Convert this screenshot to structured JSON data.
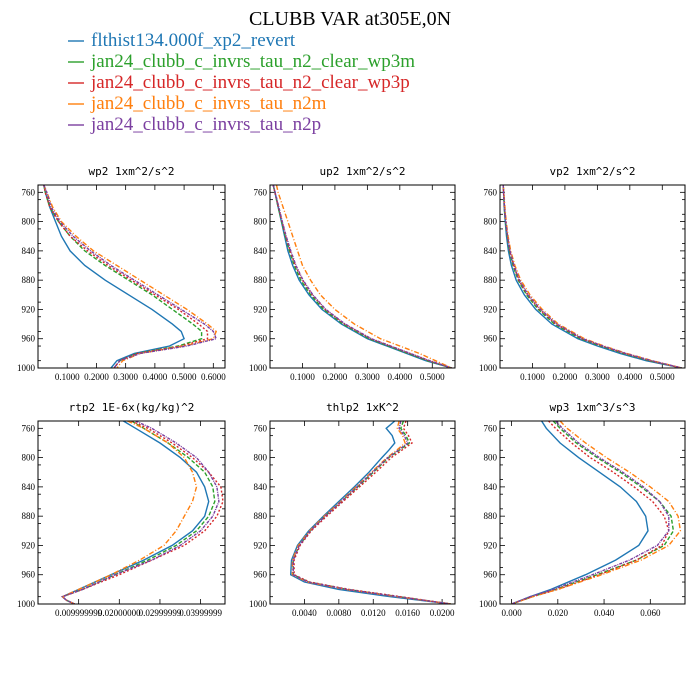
{
  "figure": {
    "title": "CLUBB VAR at305E,0N"
  },
  "legend": [
    {
      "label": "flthist134.000f_xp2_revert",
      "color": "#1f77b4"
    },
    {
      "label": "jan24_clubb_c_invrs_tau_n2_clear_wp3m",
      "color": "#2ca02c"
    },
    {
      "label": "jan24_clubb_c_invrs_tau_n2_clear_wp3p",
      "color": "#d62728"
    },
    {
      "label": "jan24_clubb_c_invrs_tau_n2m",
      "color": "#ff7f0e"
    },
    {
      "label": "jan24_clubb_c_invrs_tau_n2p",
      "color": "#7b3fa0"
    }
  ],
  "chart_data": [
    {
      "type": "line",
      "title": "wp2   1xm^2/s^2",
      "xlim": [
        0.0,
        0.64
      ],
      "ylim": [
        1000,
        750
      ],
      "xticks": [
        0.1,
        0.2,
        0.3,
        0.4,
        0.5,
        0.6
      ],
      "xtick_labels": [
        "0.1000",
        "0.2000",
        "0.3000",
        "0.4000",
        "0.5000",
        "0.6000"
      ],
      "yticks": [
        760,
        800,
        840,
        880,
        920,
        960,
        1000
      ],
      "y": [
        750,
        760,
        780,
        800,
        820,
        840,
        860,
        880,
        900,
        920,
        940,
        950,
        960,
        970,
        980,
        990,
        1000
      ],
      "series": [
        {
          "values": [
            0.02,
            0.025,
            0.04,
            0.06,
            0.08,
            0.11,
            0.16,
            0.23,
            0.31,
            0.39,
            0.46,
            0.49,
            0.5,
            0.45,
            0.33,
            0.27,
            0.25
          ]
        },
        {
          "values": [
            0.02,
            0.025,
            0.04,
            0.07,
            0.11,
            0.16,
            0.23,
            0.31,
            0.39,
            0.46,
            0.53,
            0.56,
            0.56,
            0.48,
            0.34,
            0.28,
            0.26
          ]
        },
        {
          "values": [
            0.02,
            0.025,
            0.04,
            0.07,
            0.11,
            0.17,
            0.24,
            0.32,
            0.4,
            0.48,
            0.55,
            0.58,
            0.58,
            0.49,
            0.34,
            0.28,
            0.26
          ]
        },
        {
          "values": [
            0.02,
            0.03,
            0.05,
            0.08,
            0.13,
            0.19,
            0.27,
            0.35,
            0.43,
            0.51,
            0.58,
            0.61,
            0.6,
            0.5,
            0.35,
            0.29,
            0.27
          ]
        },
        {
          "values": [
            0.02,
            0.03,
            0.045,
            0.075,
            0.12,
            0.18,
            0.25,
            0.33,
            0.41,
            0.49,
            0.57,
            0.6,
            0.61,
            0.51,
            0.35,
            0.28,
            0.26
          ]
        }
      ]
    },
    {
      "type": "line",
      "title": "up2   1xm^2/s^2",
      "xlim": [
        0.0,
        0.57
      ],
      "ylim": [
        1000,
        750
      ],
      "xticks": [
        0.1,
        0.2,
        0.3,
        0.4,
        0.5
      ],
      "xtick_labels": [
        "0.1000",
        "0.2000",
        "0.3000",
        "0.4000",
        "0.5000"
      ],
      "yticks": [
        760,
        800,
        840,
        880,
        920,
        960,
        1000
      ],
      "y": [
        750,
        760,
        780,
        800,
        820,
        840,
        860,
        880,
        900,
        920,
        940,
        960,
        970,
        980,
        990,
        1000
      ],
      "series": [
        {
          "values": [
            0.01,
            0.015,
            0.025,
            0.035,
            0.045,
            0.055,
            0.07,
            0.09,
            0.12,
            0.16,
            0.22,
            0.3,
            0.36,
            0.42,
            0.48,
            0.56
          ]
        },
        {
          "values": [
            0.01,
            0.015,
            0.025,
            0.036,
            0.047,
            0.06,
            0.075,
            0.095,
            0.125,
            0.165,
            0.225,
            0.305,
            0.365,
            0.425,
            0.485,
            0.56
          ]
        },
        {
          "values": [
            0.01,
            0.015,
            0.026,
            0.037,
            0.048,
            0.062,
            0.078,
            0.1,
            0.13,
            0.17,
            0.23,
            0.31,
            0.37,
            0.43,
            0.49,
            0.56
          ]
        },
        {
          "values": [
            0.02,
            0.025,
            0.04,
            0.055,
            0.07,
            0.085,
            0.1,
            0.125,
            0.155,
            0.2,
            0.26,
            0.34,
            0.4,
            0.46,
            0.51,
            0.56
          ]
        },
        {
          "values": [
            0.01,
            0.016,
            0.027,
            0.038,
            0.05,
            0.064,
            0.08,
            0.102,
            0.132,
            0.172,
            0.232,
            0.312,
            0.372,
            0.432,
            0.492,
            0.56
          ]
        }
      ]
    },
    {
      "type": "line",
      "title": "vp2   1xm^2/s^2",
      "xlim": [
        0.0,
        0.57
      ],
      "ylim": [
        1000,
        750
      ],
      "xticks": [
        0.1,
        0.2,
        0.3,
        0.4,
        0.5
      ],
      "xtick_labels": [
        "0.1000",
        "0.2000",
        "0.3000",
        "0.4000",
        "0.5000"
      ],
      "yticks": [
        760,
        800,
        840,
        880,
        920,
        960,
        1000
      ],
      "y": [
        750,
        760,
        780,
        800,
        820,
        840,
        860,
        880,
        900,
        920,
        940,
        960,
        970,
        980,
        990,
        1000
      ],
      "series": [
        {
          "values": [
            0.01,
            0.011,
            0.013,
            0.016,
            0.02,
            0.026,
            0.035,
            0.05,
            0.075,
            0.11,
            0.16,
            0.24,
            0.3,
            0.37,
            0.45,
            0.56
          ]
        },
        {
          "values": [
            0.01,
            0.011,
            0.013,
            0.017,
            0.022,
            0.029,
            0.04,
            0.056,
            0.082,
            0.118,
            0.168,
            0.248,
            0.31,
            0.38,
            0.46,
            0.56
          ]
        },
        {
          "values": [
            0.01,
            0.011,
            0.014,
            0.018,
            0.023,
            0.03,
            0.042,
            0.058,
            0.085,
            0.122,
            0.172,
            0.252,
            0.314,
            0.384,
            0.464,
            0.56
          ]
        },
        {
          "values": [
            0.01,
            0.012,
            0.015,
            0.019,
            0.025,
            0.033,
            0.046,
            0.064,
            0.092,
            0.13,
            0.18,
            0.26,
            0.32,
            0.39,
            0.47,
            0.56
          ]
        },
        {
          "values": [
            0.01,
            0.011,
            0.014,
            0.018,
            0.023,
            0.031,
            0.043,
            0.06,
            0.087,
            0.125,
            0.175,
            0.255,
            0.317,
            0.387,
            0.467,
            0.56
          ]
        }
      ]
    },
    {
      "type": "line",
      "title": "rtp2   1E-6x(kg/kg)^2",
      "xlim": [
        0.0,
        0.046
      ],
      "ylim": [
        1000,
        750
      ],
      "xticks": [
        0.01,
        0.02,
        0.03,
        0.04
      ],
      "xtick_labels": [
        "0.009999999",
        "0.02000000",
        "0.02999999",
        "0.03999999"
      ],
      "yticks": [
        760,
        800,
        840,
        880,
        920,
        960,
        1000
      ],
      "y": [
        750,
        760,
        780,
        800,
        820,
        840,
        860,
        880,
        900,
        920,
        940,
        960,
        980,
        990,
        995,
        1000
      ],
      "series": [
        {
          "values": [
            0.021,
            0.024,
            0.03,
            0.035,
            0.039,
            0.041,
            0.042,
            0.041,
            0.038,
            0.033,
            0.026,
            0.018,
            0.01,
            0.006,
            0.007,
            0.009
          ]
        },
        {
          "values": [
            0.023,
            0.026,
            0.032,
            0.037,
            0.041,
            0.043,
            0.0435,
            0.042,
            0.039,
            0.034,
            0.027,
            0.019,
            0.011,
            0.006,
            0.007,
            0.009
          ]
        },
        {
          "values": [
            0.023,
            0.027,
            0.033,
            0.038,
            0.042,
            0.045,
            0.0455,
            0.044,
            0.041,
            0.036,
            0.028,
            0.02,
            0.011,
            0.006,
            0.007,
            0.009
          ]
        },
        {
          "values": [
            0.022,
            0.026,
            0.032,
            0.036,
            0.038,
            0.039,
            0.038,
            0.036,
            0.034,
            0.031,
            0.025,
            0.018,
            0.01,
            0.006,
            0.007,
            0.009
          ]
        },
        {
          "values": [
            0.024,
            0.028,
            0.034,
            0.039,
            0.042,
            0.044,
            0.0445,
            0.043,
            0.04,
            0.035,
            0.028,
            0.019,
            0.011,
            0.006,
            0.007,
            0.009
          ]
        }
      ]
    },
    {
      "type": "line",
      "title": "thlp2   1xK^2",
      "xlim": [
        0.0,
        0.0215
      ],
      "ylim": [
        1000,
        750
      ],
      "xticks": [
        0.004,
        0.008,
        0.012,
        0.016,
        0.02
      ],
      "xtick_labels": [
        "0.0040",
        "0.0080",
        "0.0120",
        "0.0160",
        "0.0200"
      ],
      "yticks": [
        760,
        800,
        840,
        880,
        920,
        960,
        1000
      ],
      "y": [
        750,
        760,
        770,
        780,
        790,
        800,
        820,
        840,
        860,
        880,
        900,
        920,
        940,
        960,
        970,
        980,
        990,
        1000
      ],
      "series": [
        {
          "values": [
            0.0145,
            0.0135,
            0.0142,
            0.0145,
            0.0138,
            0.013,
            0.0115,
            0.0098,
            0.008,
            0.0062,
            0.0045,
            0.0032,
            0.0025,
            0.0024,
            0.004,
            0.008,
            0.014,
            0.021
          ]
        },
        {
          "values": [
            0.0155,
            0.0152,
            0.0158,
            0.0162,
            0.015,
            0.0138,
            0.012,
            0.0102,
            0.0083,
            0.0064,
            0.0047,
            0.0034,
            0.0027,
            0.0027,
            0.0045,
            0.009,
            0.015,
            0.021
          ]
        },
        {
          "values": [
            0.0158,
            0.0155,
            0.0161,
            0.0165,
            0.0153,
            0.0141,
            0.0123,
            0.0104,
            0.0085,
            0.0066,
            0.0048,
            0.0035,
            0.0028,
            0.0028,
            0.0046,
            0.0092,
            0.0152,
            0.021
          ]
        },
        {
          "values": [
            0.015,
            0.0148,
            0.0154,
            0.0157,
            0.0147,
            0.0136,
            0.0118,
            0.01,
            0.0082,
            0.0063,
            0.0046,
            0.0033,
            0.0026,
            0.0026,
            0.0043,
            0.0088,
            0.0148,
            0.021
          ]
        },
        {
          "values": [
            0.0152,
            0.015,
            0.0156,
            0.016,
            0.0149,
            0.0137,
            0.0119,
            0.0101,
            0.0083,
            0.0064,
            0.0047,
            0.0034,
            0.0027,
            0.0027,
            0.0044,
            0.0089,
            0.0149,
            0.021
          ]
        }
      ]
    },
    {
      "type": "line",
      "title": "wp3   1xm^3/s^3",
      "xlim": [
        -0.005,
        0.075
      ],
      "ylim": [
        1000,
        750
      ],
      "xticks": [
        0.0,
        0.02,
        0.04,
        0.06
      ],
      "xtick_labels": [
        "0.000",
        "0.020",
        "0.040",
        "0.060"
      ],
      "yticks": [
        760,
        800,
        840,
        880,
        920,
        960,
        1000
      ],
      "y": [
        750,
        760,
        780,
        800,
        820,
        840,
        860,
        880,
        900,
        920,
        940,
        960,
        980,
        990,
        1000
      ],
      "series": [
        {
          "values": [
            0.013,
            0.015,
            0.021,
            0.029,
            0.038,
            0.047,
            0.054,
            0.058,
            0.059,
            0.055,
            0.045,
            0.032,
            0.017,
            0.008,
            0.0
          ]
        },
        {
          "values": [
            0.018,
            0.021,
            0.028,
            0.037,
            0.047,
            0.056,
            0.064,
            0.069,
            0.07,
            0.066,
            0.054,
            0.037,
            0.019,
            0.009,
            0.0
          ]
        },
        {
          "values": [
            0.016,
            0.019,
            0.026,
            0.034,
            0.044,
            0.053,
            0.061,
            0.066,
            0.068,
            0.065,
            0.054,
            0.038,
            0.02,
            0.009,
            0.0
          ]
        },
        {
          "values": [
            0.021,
            0.024,
            0.032,
            0.041,
            0.051,
            0.06,
            0.068,
            0.072,
            0.073,
            0.068,
            0.056,
            0.039,
            0.02,
            0.009,
            0.0
          ]
        },
        {
          "values": [
            0.019,
            0.022,
            0.029,
            0.038,
            0.048,
            0.057,
            0.064,
            0.068,
            0.068,
            0.063,
            0.051,
            0.035,
            0.018,
            0.008,
            0.0
          ]
        }
      ]
    }
  ]
}
